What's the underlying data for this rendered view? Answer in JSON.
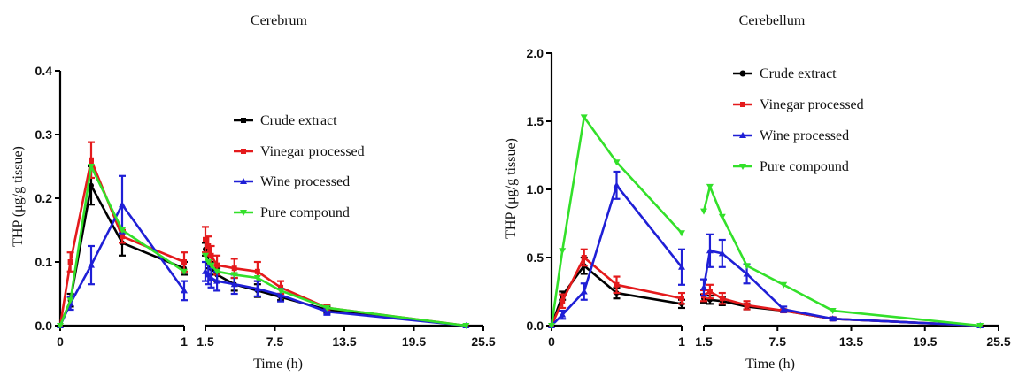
{
  "legend": [
    "Crude extract",
    "Vinegar processed",
    "Wine processed",
    "Pure compound"
  ],
  "colors": {
    "Crude extract": "#000000",
    "Vinegar processed": "#e41a1c",
    "Wine processed": "#1f1fd6",
    "Pure compound": "#33e02a"
  },
  "chart_data": [
    {
      "type": "line",
      "title": "Cerebrum",
      "xlabel": "Time (h)",
      "ylabel": "THP (μg/g tissue)",
      "ylim": [
        0,
        0.4
      ],
      "yticks": [
        "0.0",
        "0.1",
        "0.2",
        "0.3",
        "0.4"
      ],
      "xaxis_segments": [
        {
          "range": [
            0,
            1
          ],
          "ticks": [
            "0",
            "1"
          ]
        },
        {
          "range": [
            1.5,
            25.5
          ],
          "ticks": [
            "1.5",
            "7.5",
            "13.5",
            "19.5",
            "25.5"
          ]
        }
      ],
      "legend_position": "top-right",
      "series": [
        {
          "name": "Crude extract",
          "x": [
            0,
            0.083,
            0.25,
            0.5,
            1,
            1.5,
            1.75,
            2,
            2.5,
            4,
            6,
            8,
            12,
            24
          ],
          "y": [
            0,
            0.04,
            0.22,
            0.13,
            0.09,
            0.12,
            0.1,
            0.09,
            0.08,
            0.065,
            0.055,
            0.045,
            0.025,
            0
          ],
          "err": [
            0,
            0.01,
            0.03,
            0.02,
            0.01,
            0.01,
            0.01,
            0.01,
            0.01,
            0.01,
            0.01,
            0.005,
            0.005,
            0
          ]
        },
        {
          "name": "Vinegar processed",
          "x": [
            0,
            0.083,
            0.25,
            0.5,
            1,
            1.5,
            1.75,
            2,
            2.5,
            4,
            6,
            8,
            12,
            24
          ],
          "y": [
            0,
            0.1,
            0.26,
            0.14,
            0.1,
            0.135,
            0.125,
            0.11,
            0.095,
            0.09,
            0.085,
            0.06,
            0.028,
            0
          ],
          "err": [
            0,
            0.015,
            0.028,
            0.01,
            0.015,
            0.02,
            0.015,
            0.015,
            0.015,
            0.015,
            0.015,
            0.01,
            0.005,
            0
          ]
        },
        {
          "name": "Wine processed",
          "x": [
            0,
            0.083,
            0.25,
            0.5,
            1,
            1.5,
            1.75,
            2,
            2.5,
            4,
            6,
            8,
            12,
            24
          ],
          "y": [
            0,
            0.035,
            0.095,
            0.19,
            0.055,
            0.085,
            0.08,
            0.075,
            0.07,
            0.065,
            0.058,
            0.048,
            0.022,
            0
          ],
          "err": [
            0,
            0.01,
            0.03,
            0.045,
            0.015,
            0.015,
            0.015,
            0.015,
            0.015,
            0.015,
            0.012,
            0.01,
            0.005,
            0
          ]
        },
        {
          "name": "Pure compound",
          "x": [
            0,
            0.083,
            0.25,
            0.5,
            1,
            1.5,
            1.75,
            2,
            2.5,
            4,
            6,
            8,
            12,
            24
          ],
          "y": [
            0,
            0.04,
            0.25,
            0.15,
            0.085,
            0.11,
            0.1,
            0.095,
            0.085,
            0.08,
            0.075,
            0.055,
            0.028,
            0
          ]
        }
      ]
    },
    {
      "type": "line",
      "title": "Cerebellum",
      "xlabel": "Time (h)",
      "ylabel": "THP (μg/g tissue)",
      "ylim": [
        0,
        2.0
      ],
      "yticks": [
        "0.0",
        "0.5",
        "1.0",
        "1.5",
        "2.0"
      ],
      "xaxis_segments": [
        {
          "range": [
            0,
            1
          ],
          "ticks": [
            "0",
            "1"
          ]
        },
        {
          "range": [
            1.5,
            25.5
          ],
          "ticks": [
            "1.5",
            "7.5",
            "13.5",
            "19.5",
            "25.5"
          ]
        }
      ],
      "legend_position": "top-right",
      "series": [
        {
          "name": "Crude extract",
          "x": [
            0,
            0.083,
            0.25,
            0.5,
            1,
            1.5,
            2,
            3,
            5,
            8,
            12,
            24
          ],
          "y": [
            0,
            0.22,
            0.44,
            0.24,
            0.16,
            0.2,
            0.19,
            0.18,
            0.14,
            0.11,
            0.05,
            0
          ],
          "err": [
            0,
            0.03,
            0.06,
            0.04,
            0.03,
            0.03,
            0.03,
            0.03,
            0.02,
            0.01,
            0.01,
            0
          ]
        },
        {
          "name": "Vinegar processed",
          "x": [
            0,
            0.083,
            0.25,
            0.5,
            1,
            1.5,
            2,
            3,
            5,
            8,
            12,
            24
          ],
          "y": [
            0,
            0.18,
            0.5,
            0.3,
            0.2,
            0.22,
            0.25,
            0.2,
            0.15,
            0.11,
            0.05,
            0
          ],
          "err": [
            0,
            0.05,
            0.06,
            0.06,
            0.04,
            0.04,
            0.05,
            0.04,
            0.03,
            0.01,
            0.01,
            0
          ]
        },
        {
          "name": "Wine processed",
          "x": [
            0,
            0.083,
            0.25,
            0.5,
            1,
            1.5,
            2,
            3,
            5,
            8,
            12,
            24
          ],
          "y": [
            0,
            0.08,
            0.25,
            1.03,
            0.43,
            0.28,
            0.55,
            0.53,
            0.38,
            0.12,
            0.05,
            0
          ],
          "err": [
            0,
            0.03,
            0.06,
            0.1,
            0.13,
            0.06,
            0.12,
            0.1,
            0.07,
            0.02,
            0.01,
            0
          ]
        },
        {
          "name": "Pure compound",
          "x": [
            0,
            0.083,
            0.25,
            0.5,
            1,
            1.5,
            2,
            3,
            5,
            8,
            12,
            24
          ],
          "y": [
            0,
            0.55,
            1.53,
            1.2,
            0.68,
            0.84,
            1.02,
            0.8,
            0.44,
            0.3,
            0.11,
            0
          ]
        }
      ]
    }
  ]
}
